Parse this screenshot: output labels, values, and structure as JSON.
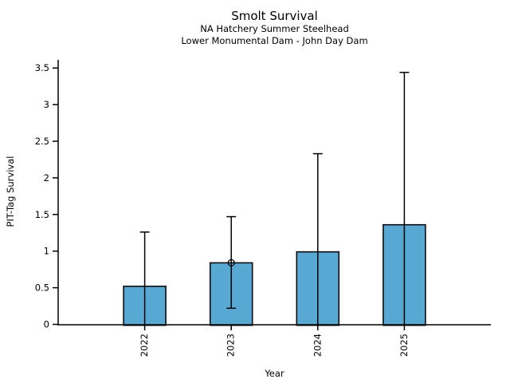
{
  "figure": {
    "title": "Smolt Survival",
    "subtitle_line1": "NA Hatchery Summer Steelhead",
    "subtitle_line2": "Lower Monumental Dam - John Day Dam",
    "xlabel": "Year",
    "ylabel": "PIT-Tag Survival"
  },
  "chart_data": {
    "type": "bar",
    "title": "Smolt Survival",
    "subtitles": [
      "NA Hatchery Summer Steelhead",
      "Lower Monumental Dam - John Day Dam"
    ],
    "xlabel": "Year",
    "ylabel": "PIT-Tag Survival",
    "categories": [
      "2022",
      "2023",
      "2024",
      "2025"
    ],
    "values": [
      0.52,
      0.84,
      0.99,
      1.36
    ],
    "error_upper": [
      1.26,
      1.47,
      2.33,
      3.44
    ],
    "error_lower": [
      0.0,
      0.22,
      0.0,
      0.0
    ],
    "error_lower_cap_visible": [
      false,
      true,
      false,
      false
    ],
    "point_markers": [
      {
        "category": "2023",
        "value": 0.84,
        "style": "open-circle"
      }
    ],
    "yticks": [
      0,
      0.5,
      1,
      1.5,
      2,
      2.5,
      3,
      3.5
    ],
    "ytick_labels": [
      "0",
      "0.5",
      "1",
      "1.5",
      "2",
      "2.5",
      "3",
      "3.5"
    ],
    "ylim": [
      0,
      3.5
    ],
    "xtick_rotation_deg": 90,
    "grid": false,
    "legend_position": "none",
    "colors": {
      "bar_fill": "#57a8d2",
      "bar_edge": "#000000",
      "axis": "#000000",
      "text": "#000000",
      "background": "#ffffff"
    }
  }
}
